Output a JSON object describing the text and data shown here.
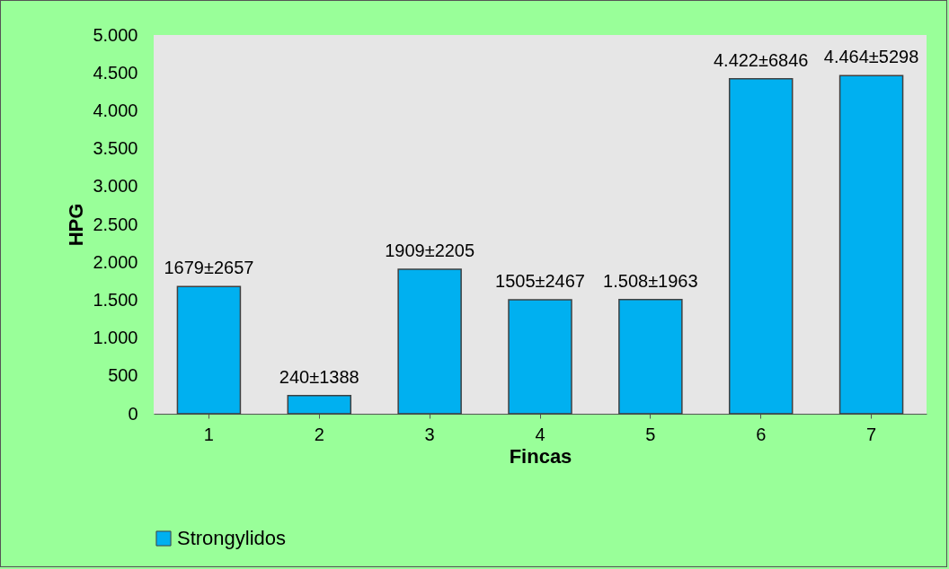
{
  "chart_data": {
    "type": "bar",
    "xlabel": "Fincas",
    "ylabel": "HPG",
    "categories": [
      "1",
      "2",
      "3",
      "4",
      "5",
      "6",
      "7"
    ],
    "series": [
      {
        "name": "Strongylidos",
        "color": "#00b0f0",
        "values": [
          1679,
          240,
          1909,
          1505,
          1508,
          4422,
          4464
        ],
        "value_labels": [
          "1679±2657",
          "240±1388",
          "1909±2205",
          "1505±2467",
          "1.508±1963",
          "4.422±6846",
          "4.464±5298"
        ]
      }
    ],
    "ylim": [
      0,
      5000
    ],
    "yticks": [
      0,
      500,
      {
        "value": 1000,
        "label": "1.000"
      },
      {
        "value": 1500,
        "label": "1.500"
      },
      {
        "value": 2000,
        "label": "2.000"
      },
      {
        "value": 2500,
        "label": "2.500"
      },
      {
        "value": 3000,
        "label": "3.000"
      },
      {
        "value": 3500,
        "label": "3.500"
      },
      {
        "value": 4000,
        "label": "4.000"
      },
      {
        "value": 4500,
        "label": "4.500"
      },
      {
        "value": 5000,
        "label": "5.000"
      }
    ],
    "grid": false,
    "legend": "bottom"
  }
}
